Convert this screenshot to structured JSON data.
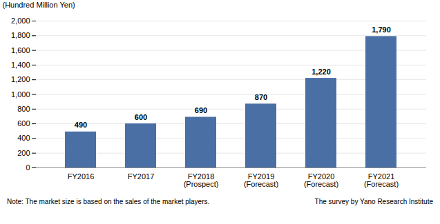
{
  "chart_data": {
    "type": "bar",
    "categories": [
      "FY2016",
      "FY2017",
      "FY2018\n(Prospect)",
      "FY2019\n(Forecast)",
      "FY2020\n(Forecast)",
      "FY2021\n(Forecast)"
    ],
    "values": [
      490,
      600,
      690,
      870,
      1220,
      1790
    ],
    "value_labels": [
      "490",
      "600",
      "690",
      "870",
      "1,220",
      "1,790"
    ],
    "data_labels": true,
    "color": "#4a6fa5",
    "ylabel": "(Hundred Million Yen)",
    "ylim": [
      0,
      2000
    ],
    "yticks": [
      0,
      200,
      400,
      600,
      800,
      {
        "value": 1000,
        "label": "1,000"
      },
      {
        "value": 1200,
        "label": "1,200"
      },
      {
        "value": 1400,
        "label": "1,400"
      },
      {
        "value": 1600,
        "label": "1,600"
      },
      {
        "value": 1800,
        "label": "1,800"
      },
      {
        "value": 2000,
        "label": "2,000"
      }
    ],
    "grid": true,
    "note": "Note: The market size is based on the sales of the market players.",
    "source": "The survey by Yano Research Institute"
  }
}
